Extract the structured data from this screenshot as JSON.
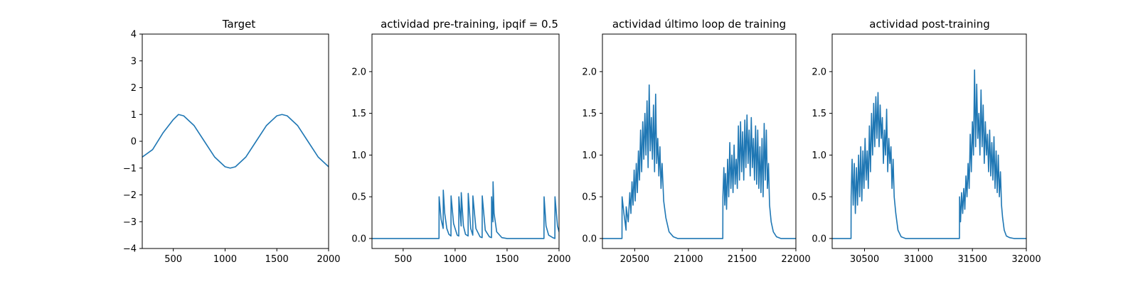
{
  "figure": {
    "background": "#ffffff",
    "line_color": "#1f77b4"
  },
  "chart_data": [
    {
      "type": "line",
      "title": "Target",
      "xlabel": "",
      "ylabel": "",
      "xlim": [
        200,
        2000
      ],
      "ylim": [
        -4,
        4
      ],
      "xticks": [
        500,
        1000,
        1500,
        2000
      ],
      "yticks": [
        -4,
        -3,
        -2,
        -1,
        0,
        1,
        2,
        3,
        4
      ],
      "grid": false,
      "series": [
        {
          "x": [
            200,
            300,
            400,
            500,
            550,
            600,
            700,
            800,
            900,
            1000,
            1050,
            1100,
            1200,
            1300,
            1400,
            1500,
            1550,
            1600,
            1700,
            1800,
            1900,
            2000
          ],
          "y": [
            -0.59,
            -0.31,
            0.31,
            0.81,
            1.0,
            0.95,
            0.59,
            0.0,
            -0.59,
            -0.95,
            -1.0,
            -0.95,
            -0.59,
            0.0,
            0.59,
            0.95,
            1.0,
            0.95,
            0.59,
            0.0,
            -0.59,
            -0.95
          ]
        }
      ]
    },
    {
      "type": "line",
      "title": "actividad pre-training, ipqif = 0.5",
      "xlabel": "",
      "ylabel": "",
      "xlim": [
        200,
        2000
      ],
      "ylim": [
        -0.12,
        2.45
      ],
      "xticks": [
        500,
        1000,
        1500,
        2000
      ],
      "yticks": [
        0.0,
        0.5,
        1.0,
        1.5,
        2.0
      ],
      "grid": false,
      "series": [
        {
          "x": [
            200,
            845,
            846,
            865,
            885,
            886,
            900,
            920,
            940,
            960,
            961,
            985,
            1020,
            1035,
            1036,
            1058,
            1059,
            1080,
            1100,
            1125,
            1126,
            1150,
            1170,
            1171,
            1200,
            1240,
            1260,
            1261,
            1290,
            1330,
            1350,
            1351,
            1358,
            1364,
            1365,
            1375,
            1400,
            1450,
            1500,
            1855,
            1856,
            1875,
            1900,
            1940,
            1960,
            1961,
            1985,
            2000
          ],
          "y": [
            0.0,
            0.0,
            0.5,
            0.23,
            0.12,
            0.58,
            0.3,
            0.12,
            0.05,
            0.03,
            0.51,
            0.18,
            0.04,
            0.03,
            0.5,
            0.15,
            0.55,
            0.15,
            0.05,
            0.03,
            0.54,
            0.12,
            0.04,
            0.51,
            0.12,
            0.02,
            0.01,
            0.51,
            0.1,
            0.02,
            0.01,
            0.5,
            0.32,
            0.2,
            0.68,
            0.3,
            0.08,
            0.01,
            0.0,
            0.0,
            0.5,
            0.15,
            0.04,
            0.01,
            0.0,
            0.5,
            0.15,
            0.08
          ]
        }
      ]
    },
    {
      "type": "line",
      "title": "actividad último loop de training",
      "xlabel": "",
      "ylabel": "",
      "xlim": [
        20200,
        22000
      ],
      "ylim": [
        -0.12,
        2.45
      ],
      "xticks": [
        20500,
        21000,
        21500,
        22000
      ],
      "yticks": [
        0.0,
        0.5,
        1.0,
        1.5,
        2.0
      ],
      "grid": false,
      "series": [
        {
          "x": [
            20200,
            20382,
            20383,
            20400,
            20420,
            20421,
            20440,
            20455,
            20465,
            20475,
            20485,
            20495,
            20505,
            20515,
            20525,
            20535,
            20545,
            20555,
            20565,
            20575,
            20585,
            20595,
            20605,
            20615,
            20625,
            20635,
            20645,
            20655,
            20665,
            20675,
            20685,
            20695,
            20705,
            20715,
            20725,
            20735,
            20745,
            20755,
            20770,
            20790,
            20820,
            20860,
            20900,
            21000,
            21200,
            21320,
            21321,
            21330,
            21338,
            21345,
            21355,
            21365,
            21375,
            21385,
            21395,
            21405,
            21415,
            21425,
            21435,
            21445,
            21455,
            21465,
            21475,
            21485,
            21495,
            21505,
            21515,
            21525,
            21535,
            21545,
            21555,
            21565,
            21575,
            21585,
            21595,
            21605,
            21615,
            21625,
            21635,
            21645,
            21655,
            21665,
            21675,
            21685,
            21695,
            21705,
            21715,
            21725,
            21735,
            21745,
            21755,
            21770,
            21790,
            21820,
            21860,
            22000
          ],
          "y": [
            0.0,
            0.0,
            0.5,
            0.3,
            0.1,
            0.38,
            0.2,
            0.55,
            0.3,
            0.68,
            0.4,
            0.82,
            0.45,
            0.9,
            0.55,
            1.05,
            0.7,
            1.3,
            0.8,
            1.4,
            0.95,
            1.5,
            1.0,
            1.65,
            0.85,
            1.84,
            1.05,
            1.45,
            0.95,
            1.6,
            0.8,
            1.73,
            0.9,
            1.2,
            0.75,
            1.1,
            0.6,
            0.9,
            0.45,
            0.25,
            0.08,
            0.02,
            0.0,
            0.0,
            0.0,
            0.0,
            0.5,
            0.85,
            0.4,
            0.78,
            0.35,
            0.95,
            0.5,
            1.15,
            0.6,
            1.0,
            0.55,
            1.12,
            0.65,
            0.95,
            0.6,
            1.35,
            0.7,
            1.4,
            0.8,
            1.28,
            0.7,
            1.42,
            0.85,
            1.48,
            0.9,
            1.3,
            0.75,
            1.45,
            0.85,
            1.2,
            0.7,
            1.35,
            0.65,
            1.3,
            0.6,
            1.1,
            0.55,
            1.2,
            0.5,
            1.38,
            0.7,
            1.3,
            0.6,
            0.9,
            0.4,
            0.2,
            0.08,
            0.02,
            0.0,
            0.0
          ]
        }
      ]
    },
    {
      "type": "line",
      "title": "actividad post-training",
      "xlabel": "",
      "ylabel": "",
      "xlim": [
        30200,
        32000
      ],
      "ylim": [
        -0.12,
        2.45
      ],
      "xticks": [
        30500,
        31000,
        31500,
        32000
      ],
      "yticks": [
        0.0,
        0.5,
        1.0,
        1.5,
        2.0
      ],
      "grid": false,
      "series": [
        {
          "x": [
            30200,
            30375,
            30376,
            30385,
            30395,
            30405,
            30415,
            30425,
            30435,
            30445,
            30455,
            30465,
            30475,
            30485,
            30495,
            30505,
            30515,
            30525,
            30535,
            30545,
            30555,
            30565,
            30575,
            30585,
            30595,
            30605,
            30615,
            30625,
            30635,
            30645,
            30655,
            30665,
            30675,
            30685,
            30695,
            30705,
            30715,
            30725,
            30735,
            30745,
            30755,
            30765,
            30775,
            30790,
            30810,
            30840,
            30880,
            31000,
            31200,
            31380,
            31381,
            31390,
            31400,
            31410,
            31420,
            31430,
            31440,
            31450,
            31460,
            31470,
            31480,
            31490,
            31500,
            31510,
            31520,
            31530,
            31540,
            31550,
            31560,
            31570,
            31580,
            31590,
            31600,
            31610,
            31620,
            31630,
            31640,
            31650,
            31660,
            31670,
            31680,
            31690,
            31700,
            31710,
            31720,
            31730,
            31740,
            31750,
            31760,
            31770,
            31780,
            31795,
            31815,
            31845,
            31885,
            32000
          ],
          "y": [
            0.0,
            0.0,
            0.5,
            0.95,
            0.4,
            0.9,
            0.3,
            0.85,
            0.4,
            1.0,
            0.5,
            1.1,
            0.45,
            1.05,
            0.6,
            1.2,
            0.7,
            1.05,
            0.6,
            1.35,
            0.8,
            1.5,
            1.0,
            1.62,
            1.1,
            1.7,
            1.2,
            1.75,
            1.1,
            1.6,
            1.2,
            1.45,
            0.9,
            1.3,
            1.0,
            1.55,
            0.8,
            1.2,
            0.9,
            1.1,
            0.6,
            0.95,
            0.5,
            0.3,
            0.1,
            0.02,
            0.0,
            0.0,
            0.0,
            0.0,
            0.5,
            0.2,
            0.55,
            0.3,
            0.6,
            0.35,
            0.75,
            0.5,
            0.9,
            0.6,
            1.25,
            0.8,
            1.4,
            1.0,
            2.02,
            1.1,
            1.85,
            1.2,
            1.5,
            1.0,
            1.78,
            1.1,
            1.6,
            0.9,
            1.4,
            1.0,
            1.25,
            0.8,
            1.3,
            0.75,
            1.15,
            0.7,
            1.22,
            0.6,
            1.05,
            0.55,
            1.0,
            0.5,
            0.8,
            0.4,
            0.25,
            0.1,
            0.03,
            0.01,
            0.0,
            0.0
          ]
        }
      ]
    }
  ]
}
